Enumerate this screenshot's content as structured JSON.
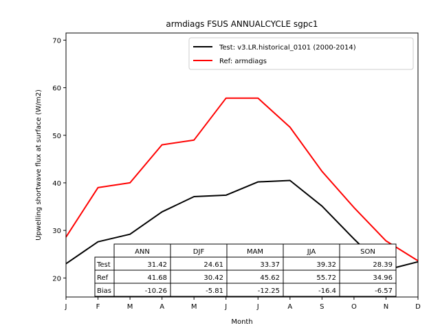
{
  "chart_data": {
    "type": "line",
    "title": "armdiags FSUS ANNUALCYCLE sgpc1",
    "xlabel": "Month",
    "ylabel": "Upwelling shortwave flux at surface (W/m2)",
    "categories": [
      "J",
      "F",
      "M",
      "A",
      "M",
      "J",
      "J",
      "A",
      "S",
      "O",
      "N",
      "D"
    ],
    "xlim": [
      0,
      11
    ],
    "ylim": [
      16,
      71.5
    ],
    "yticks": [
      20,
      30,
      40,
      50,
      60,
      70
    ],
    "legend_position": "top-right",
    "series": [
      {
        "name": "Test: v3.LR.historical_0101 (2000-2014)",
        "color": "#000000",
        "values": [
          23.0,
          27.6,
          29.2,
          33.9,
          37.1,
          37.4,
          40.2,
          40.5,
          35.1,
          28.2,
          21.7,
          23.4
        ]
      },
      {
        "name": "Ref: armdiags",
        "color": "#ff0000",
        "values": [
          28.6,
          39.0,
          40.0,
          48.0,
          49.0,
          57.8,
          57.8,
          51.7,
          42.4,
          34.8,
          27.8,
          23.6
        ]
      }
    ],
    "table": {
      "col_labels": [
        "ANN",
        "DJF",
        "MAM",
        "JJA",
        "SON"
      ],
      "rows": [
        {
          "label": "Test",
          "values": [
            "31.42",
            "24.61",
            "33.37",
            "39.32",
            "28.39"
          ]
        },
        {
          "label": "Ref",
          "values": [
            "41.68",
            "30.42",
            "45.62",
            "55.72",
            "34.96"
          ]
        },
        {
          "label": "Bias",
          "values": [
            "-10.26",
            "-5.81",
            "-12.25",
            "-16.4",
            "-6.57"
          ]
        }
      ]
    }
  }
}
